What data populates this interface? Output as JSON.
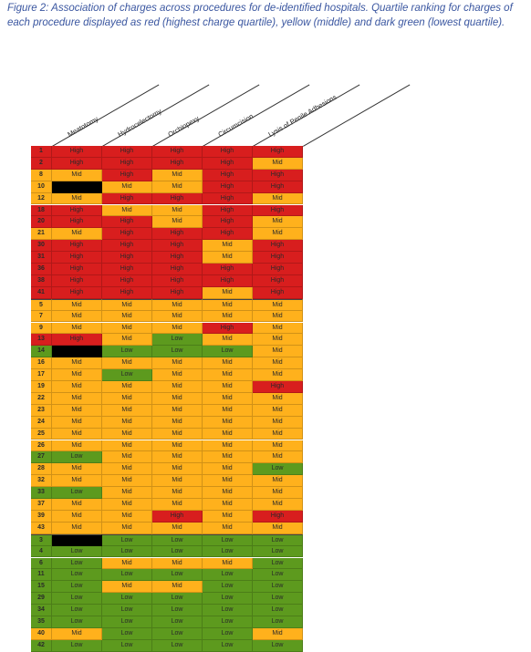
{
  "caption": "Figure 2: Association of charges across procedures for de-identified hospitals.  Quartile ranking for charges of each procedure displayed as red (highest charge quartile), yellow (middle) and dark green (lowest quartile).",
  "columns": [
    "Meatotomy",
    "Hydrocelectomy",
    "Orchiopexy",
    "Circumcision",
    "Lysis of Penile Adhesions"
  ],
  "colors": {
    "High": "#d81e1e",
    "Mid": "#ffb11c",
    "Low": "#5d9a1e",
    "blank": "#000000"
  },
  "rows": [
    {
      "id": "1",
      "v": [
        "High",
        "High",
        "High",
        "High",
        "High"
      ]
    },
    {
      "id": "2",
      "v": [
        "High",
        "High",
        "High",
        "High",
        "Mid"
      ]
    },
    {
      "id": "8",
      "v": [
        "Mid",
        "High",
        "Mid",
        "High",
        "High"
      ]
    },
    {
      "id": "10",
      "v": [
        "",
        "Mid",
        "Mid",
        "High",
        "High"
      ]
    },
    {
      "id": "12",
      "v": [
        "Mid",
        "High",
        "High",
        "High",
        "Mid"
      ]
    },
    {
      "id": "18",
      "v": [
        "High",
        "Mid",
        "Mid",
        "High",
        "High"
      ]
    },
    {
      "id": "20",
      "v": [
        "High",
        "High",
        "Mid",
        "High",
        "Mid"
      ]
    },
    {
      "id": "21",
      "v": [
        "Mid",
        "High",
        "High",
        "High",
        "Mid"
      ]
    },
    {
      "id": "30",
      "v": [
        "High",
        "High",
        "High",
        "Mid",
        "High"
      ]
    },
    {
      "id": "31",
      "v": [
        "High",
        "High",
        "High",
        "Mid",
        "High"
      ]
    },
    {
      "id": "36",
      "v": [
        "High",
        "High",
        "High",
        "High",
        "High"
      ]
    },
    {
      "id": "38",
      "v": [
        "High",
        "High",
        "High",
        "High",
        "High"
      ]
    },
    {
      "id": "41",
      "v": [
        "High",
        "High",
        "High",
        "Mid",
        "High"
      ]
    },
    {
      "id": "5",
      "v": [
        "Mid",
        "Mid",
        "Mid",
        "Mid",
        "Mid"
      ]
    },
    {
      "id": "7",
      "v": [
        "Mid",
        "Mid",
        "Mid",
        "Mid",
        "Mid"
      ]
    },
    {
      "id": "9",
      "v": [
        "Mid",
        "Mid",
        "Mid",
        "High",
        "Mid"
      ]
    },
    {
      "id": "13",
      "v": [
        "High",
        "Mid",
        "Low",
        "Mid",
        "Mid"
      ]
    },
    {
      "id": "14",
      "v": [
        "",
        "Low",
        "Low",
        "Low",
        "Mid"
      ]
    },
    {
      "id": "16",
      "v": [
        "Mid",
        "Mid",
        "Mid",
        "Mid",
        "Mid"
      ]
    },
    {
      "id": "17",
      "v": [
        "Mid",
        "Low",
        "Mid",
        "Mid",
        "Mid"
      ]
    },
    {
      "id": "19",
      "v": [
        "Mid",
        "Mid",
        "Mid",
        "Mid",
        "High"
      ]
    },
    {
      "id": "22",
      "v": [
        "Mid",
        "Mid",
        "Mid",
        "Mid",
        "Mid"
      ]
    },
    {
      "id": "23",
      "v": [
        "Mid",
        "Mid",
        "Mid",
        "Mid",
        "Mid"
      ]
    },
    {
      "id": "24",
      "v": [
        "Mid",
        "Mid",
        "Mid",
        "Mid",
        "Mid"
      ]
    },
    {
      "id": "25",
      "v": [
        "Mid",
        "Mid",
        "Mid",
        "Mid",
        "Mid"
      ]
    },
    {
      "id": "26",
      "v": [
        "Mid",
        "Mid",
        "Mid",
        "Mid",
        "Mid"
      ]
    },
    {
      "id": "27",
      "v": [
        "Low",
        "Mid",
        "Mid",
        "Mid",
        "Mid"
      ]
    },
    {
      "id": "28",
      "v": [
        "Mid",
        "Mid",
        "Mid",
        "Mid",
        "Low"
      ]
    },
    {
      "id": "32",
      "v": [
        "Mid",
        "Mid",
        "Mid",
        "Mid",
        "Mid"
      ]
    },
    {
      "id": "33",
      "v": [
        "Low",
        "Mid",
        "Mid",
        "Mid",
        "Mid"
      ]
    },
    {
      "id": "37",
      "v": [
        "Mid",
        "Mid",
        "Mid",
        "Mid",
        "Mid"
      ]
    },
    {
      "id": "39",
      "v": [
        "Mid",
        "Mid",
        "High",
        "Mid",
        "High"
      ]
    },
    {
      "id": "43",
      "v": [
        "Mid",
        "Mid",
        "Mid",
        "Mid",
        "Mid"
      ]
    },
    {
      "id": "3",
      "v": [
        "",
        "Low",
        "Low",
        "Low",
        "Low"
      ]
    },
    {
      "id": "4",
      "v": [
        "Low",
        "Low",
        "Low",
        "Low",
        "Low"
      ]
    },
    {
      "id": "6",
      "v": [
        "Low",
        "Mid",
        "Mid",
        "Mid",
        "Low"
      ]
    },
    {
      "id": "11",
      "v": [
        "Low",
        "Low",
        "Low",
        "Low",
        "Low"
      ]
    },
    {
      "id": "15",
      "v": [
        "Low",
        "Mid",
        "Mid",
        "Low",
        "Low"
      ]
    },
    {
      "id": "29",
      "v": [
        "Low",
        "Low",
        "Low",
        "Low",
        "Low"
      ]
    },
    {
      "id": "34",
      "v": [
        "Low",
        "Low",
        "Low",
        "Low",
        "Low"
      ]
    },
    {
      "id": "35",
      "v": [
        "Low",
        "Low",
        "Low",
        "Low",
        "Low"
      ]
    },
    {
      "id": "40",
      "v": [
        "Mid",
        "Low",
        "Low",
        "Low",
        "Mid"
      ]
    },
    {
      "id": "42",
      "v": [
        "Low",
        "Low",
        "Low",
        "Low",
        "Low"
      ]
    }
  ]
}
